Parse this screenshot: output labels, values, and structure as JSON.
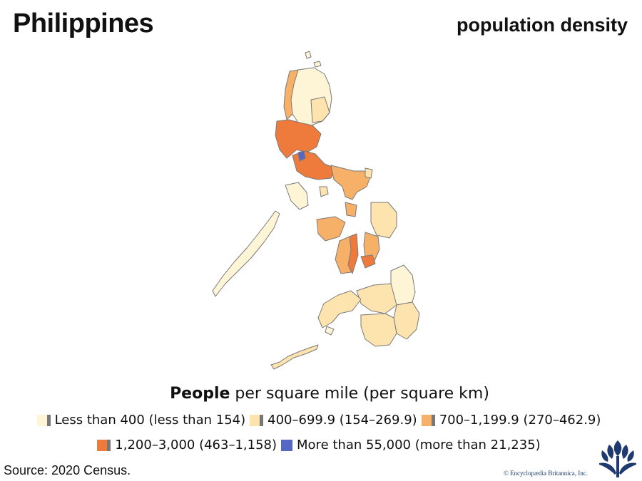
{
  "header": {
    "title": "Philippines",
    "subtitle": "population density"
  },
  "legend": {
    "heading_bold": "People",
    "heading_rest": " per square mile (per square km)",
    "items": [
      {
        "label": "Less than 400 (less than 154)",
        "color": "#fdf5d6"
      },
      {
        "label": "400–699.9 (154–269.9)",
        "color": "#fde3ad"
      },
      {
        "label": "700–1,199.9 (270–462.9)",
        "color": "#f6b068"
      },
      {
        "label": "1,200–3,000 (463–1,158)",
        "color": "#ee7b3b"
      },
      {
        "label": "More than 55,000 (more than 21,235)",
        "color": "#5468c4"
      }
    ]
  },
  "map": {
    "outline_color": "#7a7a7a"
  },
  "footer": {
    "source": "Source: 2020 Census.",
    "copyright": "© Encyclopædia Britannica, Inc."
  }
}
